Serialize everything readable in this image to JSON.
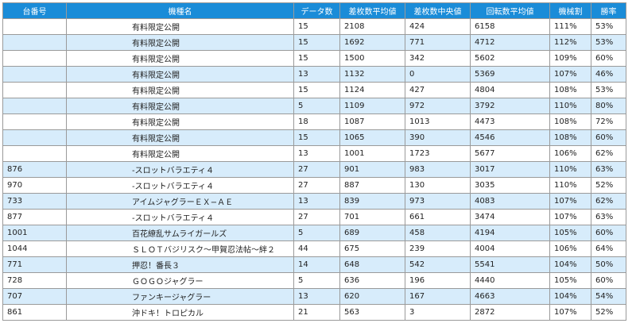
{
  "headers": [
    "台番号",
    "機種名",
    "データ数",
    "差枚数平均値",
    "差枚数中央値",
    "回転数平均値",
    "機械割",
    "勝率"
  ],
  "rows": [
    [
      "",
      "有料限定公開",
      "15",
      "2108",
      "424",
      "6158",
      "111%",
      "53%"
    ],
    [
      "",
      "有料限定公開",
      "15",
      "1692",
      "771",
      "4712",
      "112%",
      "53%"
    ],
    [
      "",
      "有料限定公開",
      "15",
      "1500",
      "342",
      "5602",
      "109%",
      "60%"
    ],
    [
      "",
      "有料限定公開",
      "13",
      "1132",
      "0",
      "5369",
      "107%",
      "46%"
    ],
    [
      "",
      "有料限定公開",
      "15",
      "1124",
      "427",
      "4804",
      "108%",
      "53%"
    ],
    [
      "",
      "有料限定公開",
      "5",
      "1109",
      "972",
      "3792",
      "110%",
      "80%"
    ],
    [
      "",
      "有料限定公開",
      "18",
      "1087",
      "1013",
      "4473",
      "108%",
      "72%"
    ],
    [
      "",
      "有料限定公開",
      "15",
      "1065",
      "390",
      "4546",
      "108%",
      "60%"
    ],
    [
      "",
      "有料限定公開",
      "13",
      "1001",
      "1723",
      "5677",
      "106%",
      "62%"
    ],
    [
      "876",
      "-スロットバラエティ４",
      "27",
      "901",
      "983",
      "3017",
      "110%",
      "63%"
    ],
    [
      "970",
      "-スロットバラエティ４",
      "27",
      "887",
      "130",
      "3035",
      "110%",
      "52%"
    ],
    [
      "733",
      "アイムジャグラーＥＸ−ＡＥ",
      "13",
      "839",
      "973",
      "4083",
      "107%",
      "62%"
    ],
    [
      "877",
      "-スロットバラエティ４",
      "27",
      "701",
      "661",
      "3474",
      "107%",
      "63%"
    ],
    [
      "1001",
      "百花繚乱サムライガールズ",
      "5",
      "689",
      "458",
      "4194",
      "105%",
      "60%"
    ],
    [
      "1044",
      "ＳＬＯＴバジリスク〜甲賀忍法帖〜絆２",
      "44",
      "675",
      "239",
      "4004",
      "106%",
      "64%"
    ],
    [
      "771",
      "押忍！番長３",
      "14",
      "648",
      "542",
      "5541",
      "104%",
      "50%"
    ],
    [
      "728",
      "ＧＯＧＯジャグラー",
      "5",
      "636",
      "196",
      "4440",
      "105%",
      "60%"
    ],
    [
      "707",
      "ファンキージャグラー",
      "13",
      "620",
      "167",
      "4663",
      "104%",
      "54%"
    ],
    [
      "861",
      "沖ドキ！トロピカル",
      "21",
      "563",
      "3",
      "2872",
      "107%",
      "52%"
    ]
  ]
}
